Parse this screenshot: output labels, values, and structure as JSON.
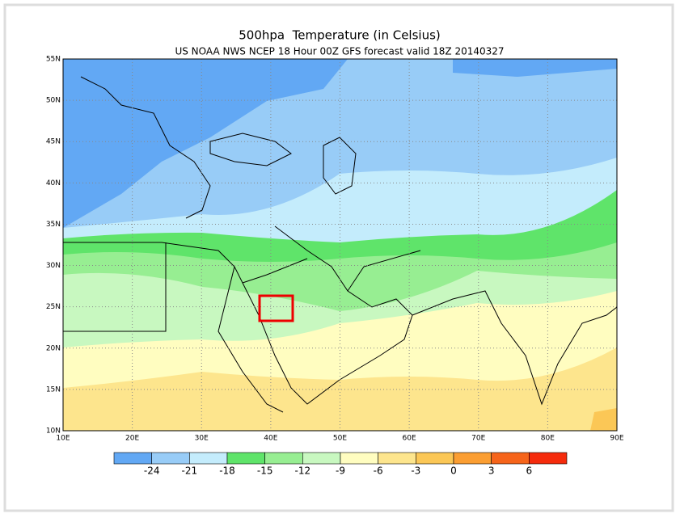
{
  "header": {
    "title": "500hpa  Temperature (in Celsius)",
    "subtitle": "US NOAA NWS NCEP 18 Hour 00Z GFS forecast valid 18Z 20140327"
  },
  "map": {
    "lonlim": [
      10,
      90
    ],
    "latlim": [
      10,
      55
    ],
    "lon_ticks": [
      {
        "value": 10,
        "label": "10E"
      },
      {
        "value": 20,
        "label": "20E"
      },
      {
        "value": 30,
        "label": "30E"
      },
      {
        "value": 40,
        "label": "40E"
      },
      {
        "value": 50,
        "label": "50E"
      },
      {
        "value": 60,
        "label": "60E"
      },
      {
        "value": 70,
        "label": "70E"
      },
      {
        "value": 80,
        "label": "80E"
      },
      {
        "value": 90,
        "label": "90E"
      }
    ],
    "lat_ticks": [
      {
        "value": 10,
        "label": "10N"
      },
      {
        "value": 15,
        "label": "15N"
      },
      {
        "value": 20,
        "label": "20N"
      },
      {
        "value": 25,
        "label": "25N"
      },
      {
        "value": 30,
        "label": "30N"
      },
      {
        "value": 35,
        "label": "35N"
      },
      {
        "value": 40,
        "label": "40N"
      },
      {
        "value": 45,
        "label": "45N"
      },
      {
        "value": 50,
        "label": "50N"
      },
      {
        "value": 55,
        "label": "55N"
      }
    ]
  },
  "legend": {
    "levels": [
      -24,
      -21,
      -18,
      -15,
      -12,
      -9,
      -6,
      -3,
      0,
      3,
      6
    ],
    "colors": [
      "#62a8f4",
      "#98ccf7",
      "#c4ecfc",
      "#5fe46a",
      "#97ee92",
      "#c8f8c0",
      "#fffdc0",
      "#fde58d",
      "#fbc756",
      "#fb9e32",
      "#f6641a",
      "#f52b0c"
    ]
  }
}
